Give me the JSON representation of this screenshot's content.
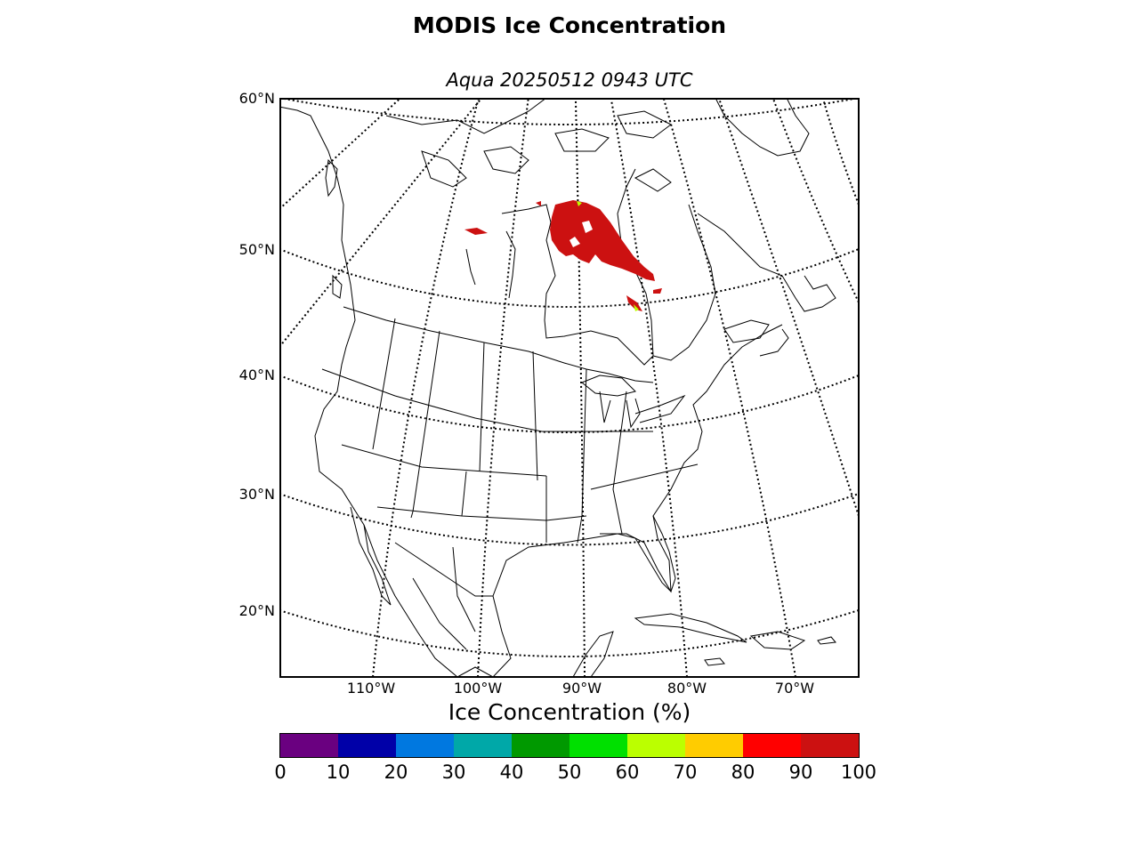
{
  "title": "MODIS Ice Concentration",
  "subtitle": "Aqua 20250512 0943 UTC",
  "map": {
    "latitude_labels": [
      "60°N",
      "50°N",
      "40°N",
      "30°N",
      "20°N"
    ],
    "longitude_labels": [
      "110°W",
      "100°W",
      "90°W",
      "80°W",
      "70°W"
    ],
    "region": "North America",
    "ice_color": "#cc1111"
  },
  "colorbar": {
    "title": "Ice Concentration (%)",
    "ticks": [
      "0",
      "10",
      "20",
      "30",
      "40",
      "50",
      "60",
      "70",
      "80",
      "90",
      "100"
    ],
    "colors": [
      "#6a0080",
      "#0000a8",
      "#0078e0",
      "#00a8a8",
      "#009900",
      "#00e000",
      "#bbff00",
      "#ffcc00",
      "#ff0000",
      "#cc1111"
    ]
  }
}
